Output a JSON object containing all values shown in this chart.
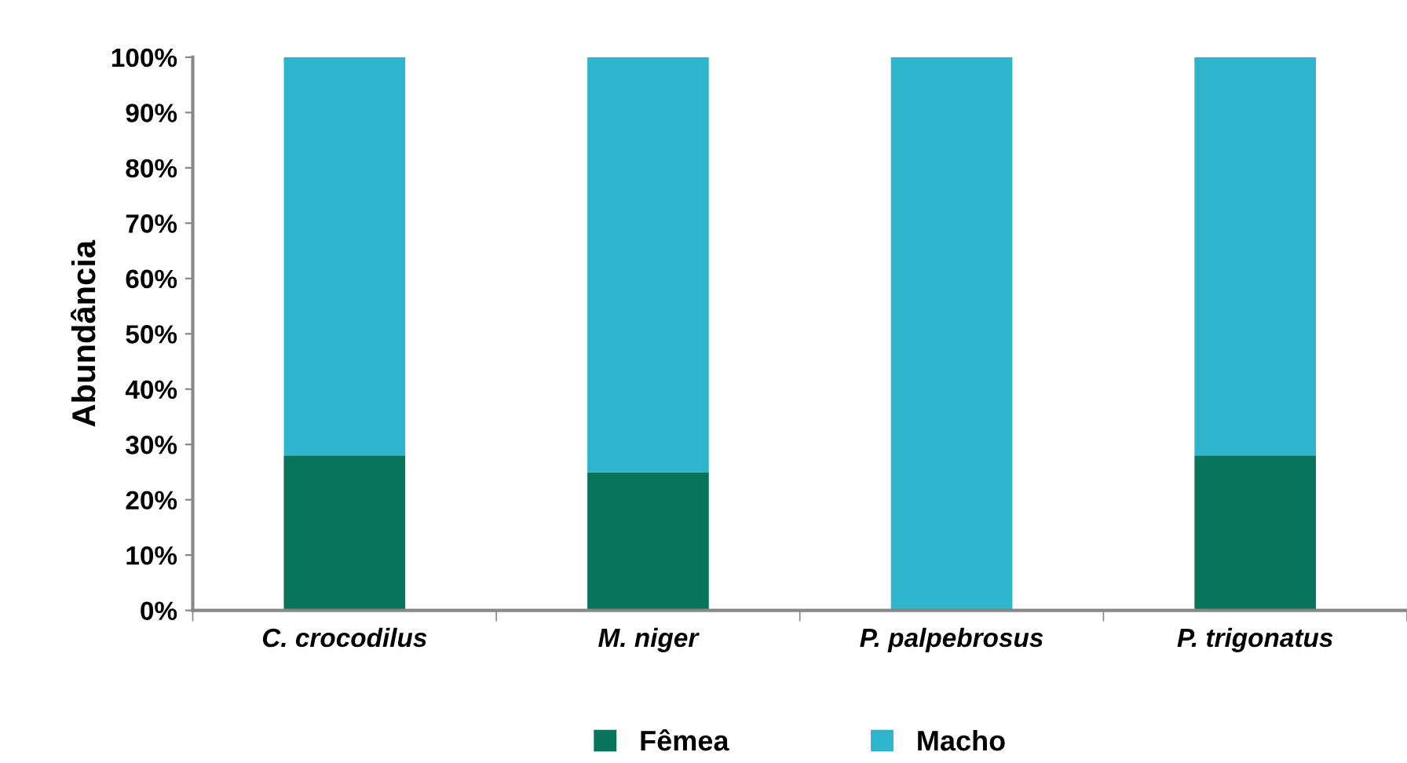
{
  "chart_data": {
    "type": "bar",
    "stacked": true,
    "ylabel": "Abundância",
    "categories": [
      "C. crocodilus",
      "M. niger",
      "P. palpebrosus",
      "P. trigonatus"
    ],
    "series": [
      {
        "name": "Fêmea",
        "color": "#08745c",
        "values": [
          28,
          25,
          0,
          28
        ]
      },
      {
        "name": "Macho",
        "color": "#2eb4cc",
        "values": [
          72,
          75,
          100,
          72
        ]
      }
    ],
    "ylim": [
      0,
      100
    ],
    "yticks": [
      {
        "value": 0,
        "label": "0%"
      },
      {
        "value": 10,
        "label": "10%"
      },
      {
        "value": 20,
        "label": "20%"
      },
      {
        "value": 30,
        "label": "30%"
      },
      {
        "value": 40,
        "label": "40%"
      },
      {
        "value": 50,
        "label": "50%"
      },
      {
        "value": 60,
        "label": "60%"
      },
      {
        "value": 70,
        "label": "70%"
      },
      {
        "value": 80,
        "label": "80%"
      },
      {
        "value": 90,
        "label": "90%"
      },
      {
        "value": 100,
        "label": "100%"
      }
    ],
    "grid": false,
    "legend": "bottom"
  }
}
